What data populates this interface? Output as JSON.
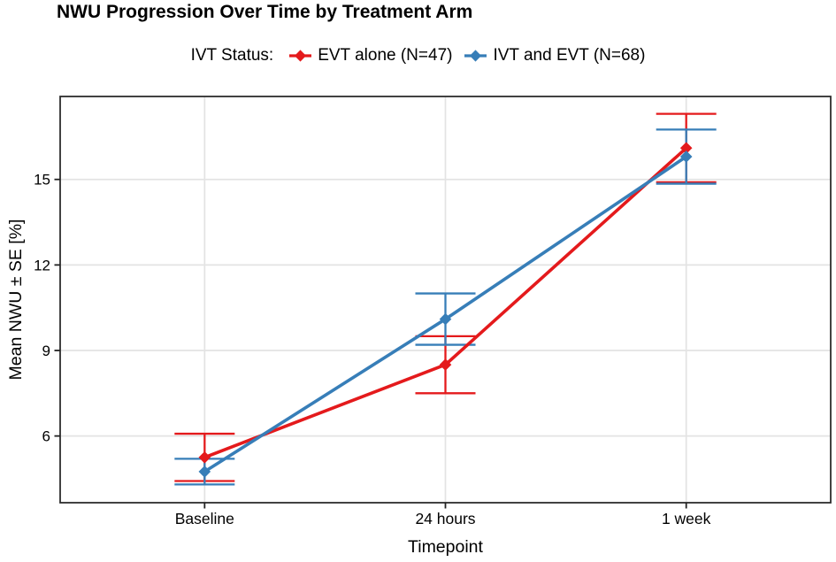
{
  "legend": {
    "title": "IVT Status:",
    "position": "top"
  },
  "chart_data": {
    "type": "line",
    "title": "NWU Progression Over Time by Treatment Arm",
    "xlabel": "Timepoint",
    "ylabel": "Mean NWU ± SE [%]",
    "categories": [
      "Baseline",
      "24 hours",
      "1 week"
    ],
    "yticks": [
      6,
      9,
      12,
      15
    ],
    "ylim": [
      3.66,
      17.91
    ],
    "grid": true,
    "marker": "diamond",
    "error_bars": "mean ± standard error with caps",
    "series": [
      {
        "name": "EVT alone (N=47)",
        "color": "#E41A1C",
        "means": [
          5.25,
          8.5,
          16.1
        ],
        "se": [
          0.83,
          1.0,
          1.2
        ]
      },
      {
        "name": "IVT and EVT (N=68)",
        "color": "#377EB8",
        "means": [
          4.75,
          10.1,
          15.8
        ],
        "se": [
          0.45,
          0.9,
          0.95
        ]
      }
    ],
    "colors": {
      "grid": "#E3E3E3",
      "panel_border": "#2E2E2E",
      "tick": "#222222",
      "text": "#000000",
      "background": "#FFFFFF"
    }
  }
}
